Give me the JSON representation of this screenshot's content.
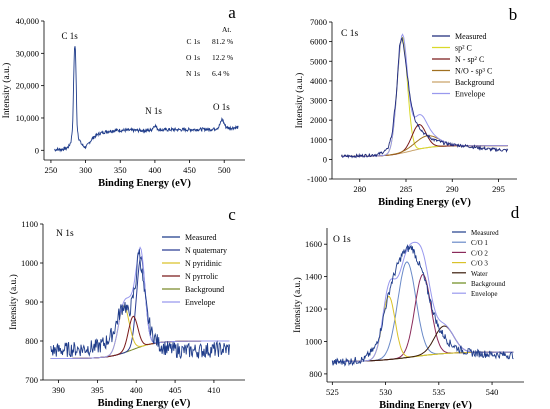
{
  "chart_data": [
    {
      "panel_letter": "a",
      "type": "line",
      "title": "",
      "xlabel": "Binding Energy (eV)",
      "ylabel": "Intensity (a.u.)",
      "xlim": [
        240,
        530
      ],
      "ylim": [
        -3000,
        40000
      ],
      "xticks": [
        250,
        300,
        350,
        400,
        450,
        500
      ],
      "yticks": [
        0,
        10000,
        20000,
        30000,
        40000
      ],
      "ytick_labels": [
        "0",
        "10,000",
        "20,000",
        "30,000",
        "40,000"
      ],
      "colors": {
        "measured": "#1f3c8a"
      },
      "annotations": [
        {
          "text": "C 1s",
          "x": 277,
          "y": 34500
        },
        {
          "text": "N 1s",
          "x": 398,
          "y": 11200
        },
        {
          "text": "O 1s",
          "x": 496,
          "y": 12500
        }
      ],
      "table": {
        "header": "At.",
        "rows": [
          {
            "label": "C 1s",
            "value": "81.2 %"
          },
          {
            "label": "O 1s",
            "value": "12.2 %"
          },
          {
            "label": "N 1s",
            "value": "6.4 %"
          }
        ]
      },
      "series": [
        {
          "name": "Measured",
          "x": [
            255,
            265,
            272,
            276,
            279,
            281,
            282,
            283,
            284,
            285,
            286,
            287,
            288,
            290,
            293,
            297,
            300,
            303,
            306,
            310,
            315,
            320,
            330,
            340,
            350,
            360,
            370,
            380,
            390,
            395,
            398,
            400,
            402,
            405,
            410,
            420,
            430,
            440,
            450,
            460,
            470,
            480,
            488,
            492,
            495,
            497,
            499,
            502,
            506,
            510,
            515,
            520
          ],
          "y": [
            200,
            300,
            600,
            1200,
            2800,
            6500,
            13000,
            24000,
            31500,
            33000,
            26000,
            14000,
            7000,
            3800,
            2300,
            1200,
            1000,
            1600,
            2600,
            3700,
            4600,
            5200,
            5800,
            6100,
            6200,
            6200,
            6200,
            6150,
            6100,
            6300,
            7300,
            7800,
            7100,
            6500,
            6300,
            6400,
            6400,
            6350,
            6400,
            6450,
            6500,
            6500,
            6700,
            7200,
            8600,
            9800,
            8700,
            7400,
            6900,
            6900,
            7000,
            7100
          ]
        }
      ]
    },
    {
      "panel_letter": "b",
      "type": "line",
      "title": "C 1s",
      "xlabel": "Binding Energy (eV)",
      "ylabel": "Intensity (a.u.)",
      "xlim": [
        277,
        297
      ],
      "ylim": [
        -1000,
        7000
      ],
      "xticks": [
        280,
        285,
        290,
        295
      ],
      "yticks": [
        -1000,
        0,
        1000,
        2000,
        3000,
        4000,
        5000,
        6000,
        7000
      ],
      "legend_position": "top-right",
      "colors": {
        "measured": "#1f2a7a",
        "sp2": "#d9d92a",
        "nsp2": "#7a1a1a",
        "nosp3": "#a07020",
        "background": "#c9a36a",
        "envelope": "#9999ee"
      },
      "series": [
        {
          "name": "Measured",
          "key": "measured",
          "kind": "noisy",
          "x": [
            278,
            280,
            282,
            283,
            283.5,
            284,
            284.3,
            284.6,
            285,
            285.5,
            286,
            286.5,
            287,
            288,
            289,
            290,
            292,
            294,
            296
          ],
          "y": [
            150,
            180,
            250,
            500,
            1300,
            3500,
            5800,
            6200,
            4800,
            3000,
            2000,
            1600,
            1300,
            1000,
            850,
            750,
            650,
            520,
            460
          ]
        },
        {
          "name": "sp² C",
          "key": "sp2",
          "kind": "peak",
          "center": 284.6,
          "height": 5900,
          "width": 0.55
        },
        {
          "name": "N - sp² C",
          "key": "nsp2",
          "kind": "peak",
          "center": 286.4,
          "height": 1250,
          "width": 0.75
        },
        {
          "name": "N/O - sp³ C",
          "key": "nosp3",
          "kind": "peak",
          "center": 287.3,
          "height": 600,
          "width": 1.3
        },
        {
          "name": "Background",
          "key": "background",
          "kind": "step",
          "low": 150,
          "high": 700,
          "center": 285.5,
          "width": 1.2
        },
        {
          "name": "Envelope",
          "key": "envelope",
          "kind": "envelope"
        }
      ]
    },
    {
      "panel_letter": "c",
      "type": "line",
      "title": "N 1s",
      "xlabel": "Binding Energy (eV)",
      "ylabel": "Intensity (a.u.)",
      "xlim": [
        388,
        414
      ],
      "ylim": [
        700,
        1100
      ],
      "xticks": [
        390,
        395,
        400,
        405,
        410
      ],
      "yticks": [
        700,
        800,
        900,
        1000,
        1100
      ],
      "legend_position": "top-right",
      "colors": {
        "measured": "#1f3c8a",
        "nquat": "#2c3e94",
        "npyd": "#d9c22a",
        "npyr": "#7a1a1a",
        "background": "#7a8a2a",
        "envelope": "#9999ee"
      },
      "series": [
        {
          "name": "Measured",
          "key": "measured",
          "kind": "noisy",
          "x": [
            389,
            391,
            393,
            395,
            396,
            397,
            398,
            398.5,
            399,
            399.5,
            400,
            400.3,
            400.6,
            401,
            401.5,
            402,
            403,
            404,
            406,
            408,
            410,
            412
          ],
          "y": [
            775,
            778,
            780,
            785,
            795,
            820,
            880,
            895,
            870,
            900,
            960,
            1040,
            1000,
            930,
            860,
            820,
            790,
            780,
            775,
            775,
            778,
            780
          ]
        },
        {
          "name": "N quaternary",
          "key": "nquat",
          "kind": "peak",
          "center": 400.6,
          "height": 230,
          "width": 0.55
        },
        {
          "name": "N pyridinic",
          "key": "npyd",
          "kind": "peak",
          "center": 398.4,
          "height": 120,
          "width": 0.7
        },
        {
          "name": "N pyrrolic",
          "key": "npyr",
          "kind": "peak",
          "center": 399.6,
          "height": 85,
          "width": 0.6
        },
        {
          "name": "Background",
          "key": "background",
          "kind": "step",
          "low": 755,
          "high": 800,
          "center": 399.5,
          "width": 1.5
        },
        {
          "name": "Envelope",
          "key": "envelope",
          "kind": "envelope"
        }
      ]
    },
    {
      "panel_letter": "d",
      "type": "line",
      "title": "O 1s",
      "xlabel": "Binding Energy (eV)",
      "ylabel": "Intensity (a.u.)",
      "xlim": [
        524.5,
        543
      ],
      "ylim": [
        750,
        1700
      ],
      "xticks": [
        525,
        530,
        535,
        540
      ],
      "yticks": [
        800,
        1000,
        1200,
        1400,
        1600
      ],
      "legend_position": "top-right",
      "colors": {
        "measured": "#1f3c8a",
        "co1": "#6a8ac8",
        "co2": "#8a2a5a",
        "co3": "#d9c22a",
        "water": "#3a1a0a",
        "background": "#6a8a1a",
        "envelope": "#9999ee"
      },
      "series": [
        {
          "name": "Measured",
          "key": "measured",
          "kind": "noisy",
          "x": [
            525,
            527,
            528,
            529,
            529.5,
            530,
            530.5,
            531,
            531.5,
            532,
            532.5,
            533,
            533.5,
            534,
            534.5,
            535,
            536,
            537,
            538,
            540,
            542
          ],
          "y": [
            870,
            880,
            890,
            960,
            1060,
            1210,
            1350,
            1450,
            1530,
            1570,
            1580,
            1500,
            1420,
            1300,
            1180,
            1080,
            990,
            950,
            930,
            920,
            915
          ]
        },
        {
          "name": "C/O 1",
          "key": "co1",
          "kind": "peak",
          "center": 532.0,
          "height": 590,
          "width": 0.85
        },
        {
          "name": "C/O 2",
          "key": "co2",
          "kind": "peak",
          "center": 533.5,
          "height": 500,
          "width": 0.75
        },
        {
          "name": "C/O 3",
          "key": "co3",
          "kind": "peak",
          "center": 530.3,
          "height": 390,
          "width": 0.6
        },
        {
          "name": "Water",
          "key": "water",
          "kind": "peak",
          "center": 535.5,
          "height": 170,
          "width": 0.9
        },
        {
          "name": "Background",
          "key": "background",
          "kind": "step",
          "low": 875,
          "high": 935,
          "center": 532.5,
          "width": 1.8
        },
        {
          "name": "Envelope",
          "key": "envelope",
          "kind": "envelope"
        }
      ]
    }
  ]
}
